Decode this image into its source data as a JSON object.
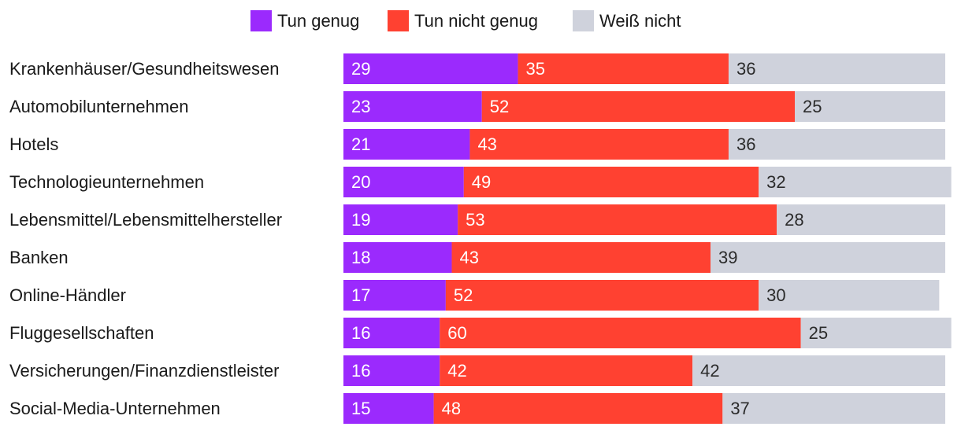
{
  "chart_data": {
    "type": "bar",
    "orientation": "horizontal",
    "stacked": true,
    "legend_position": "top-center",
    "categories": [
      "Krankenhäuser/Gesundheitswesen",
      "Automobilunternehmen",
      "Hotels",
      "Technologieunternehmen",
      "Lebensmittel/Lebensmittelhersteller",
      "Banken",
      "Online-Händler",
      "Fluggesellschaften",
      "Versicherungen/Finanzdienstleister",
      "Social-Media-Unternehmen"
    ],
    "series": [
      {
        "name": "Tun genug",
        "color": "#9B2AFD",
        "label_color": "#ffffff",
        "values": [
          29,
          23,
          21,
          20,
          19,
          18,
          17,
          16,
          16,
          15
        ]
      },
      {
        "name": "Tun nicht genug",
        "color": "#FF4131",
        "label_color": "#ffffff",
        "values": [
          35,
          52,
          43,
          49,
          53,
          43,
          52,
          60,
          42,
          48
        ]
      },
      {
        "name": "Weiß nicht",
        "color": "#CFD2DC",
        "label_color": "#2b2b2b",
        "values": [
          36,
          25,
          36,
          32,
          28,
          39,
          30,
          25,
          42,
          37
        ]
      }
    ],
    "title": "",
    "xlabel": "",
    "ylabel": "",
    "xlim": [
      0,
      100
    ]
  }
}
